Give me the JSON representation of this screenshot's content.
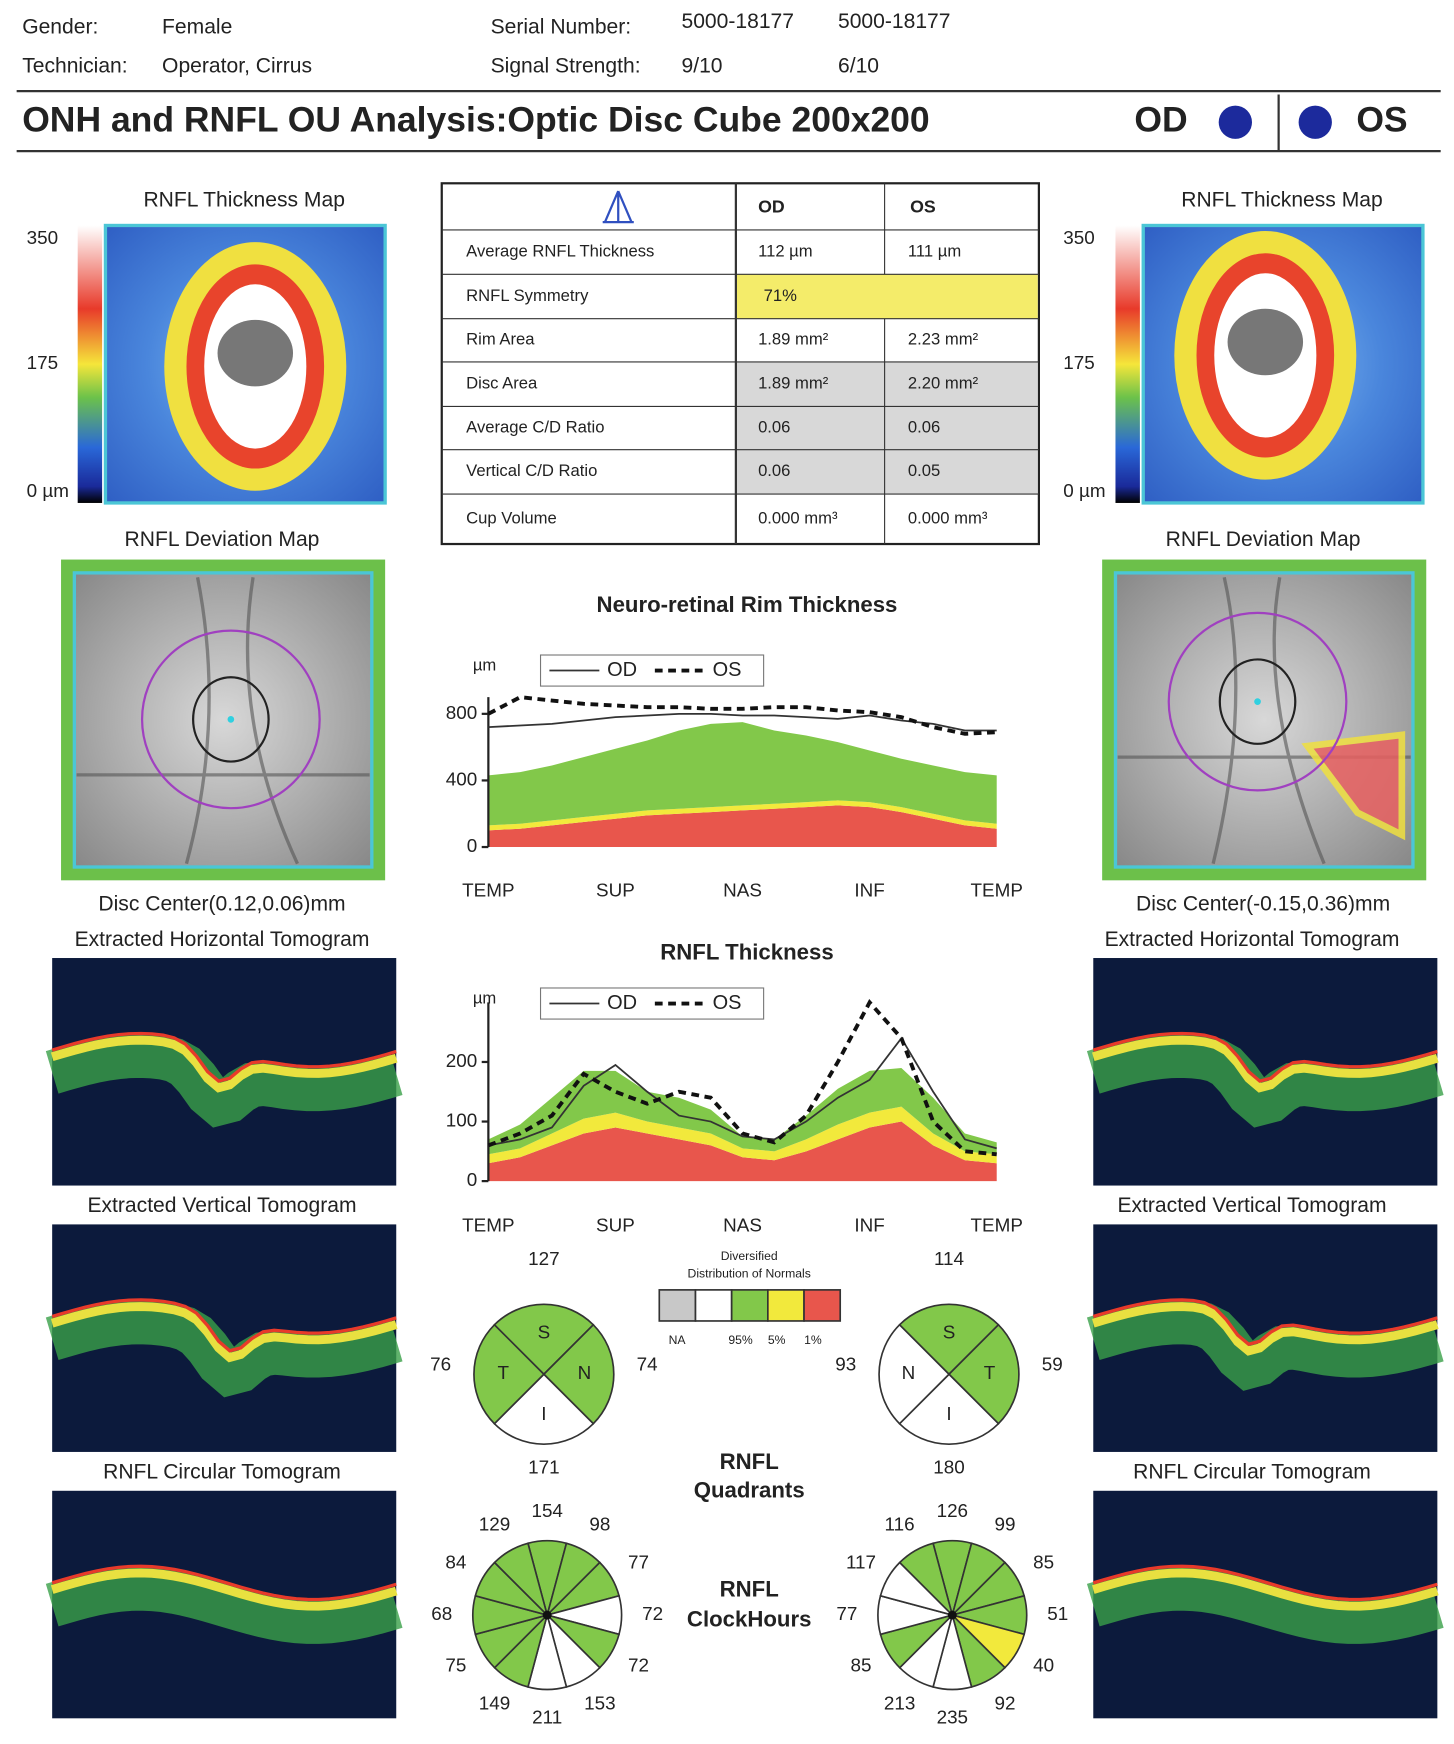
{
  "header": {
    "gender_label": "Gender:",
    "gender": "Female",
    "technician_label": "Technician:",
    "technician": "Operator, Cirrus",
    "serial_label": "Serial Number:",
    "serial": [
      "5000-18177",
      "5000-18177"
    ],
    "signal_label": "Signal Strength:",
    "signal": [
      "9/10",
      "6/10"
    ],
    "title": "ONH and RNFL OU Analysis:Optic Disc Cube 200x200",
    "od": "OD",
    "os": "OS"
  },
  "maps": {
    "thickness_title": [
      "RNFL Thickness Map",
      "RNFL Thickness Map"
    ],
    "scale": [
      350,
      175,
      "0 µm"
    ],
    "deviation_title": [
      "RNFL Deviation Map",
      "RNFL Deviation Map"
    ],
    "disc_center": [
      "Disc Center(0.12,0.06)mm",
      "Disc Center(-0.15,0.36)mm"
    ],
    "horizontal": [
      "Extracted Horizontal Tomogram",
      "Extracted Horizontal Tomogram"
    ],
    "vertical": [
      "Extracted Vertical Tomogram",
      "Extracted Vertical Tomogram"
    ],
    "circular": [
      "RNFL Circular Tomogram",
      "RNFL Circular Tomogram"
    ]
  },
  "table": {
    "header": [
      "OD",
      "OS"
    ],
    "rows": [
      [
        "Average RNFL Thickness",
        "112 µm",
        "111 µm"
      ],
      [
        "RNFL Symmetry",
        "71%"
      ],
      [
        "Rim Area",
        "1.89 mm²",
        "2.23 mm²"
      ],
      [
        "Disc Area",
        "1.89 mm²",
        "2.20 mm²"
      ],
      [
        "Average C/D Ratio",
        "0.06",
        "0.06"
      ],
      [
        "Vertical C/D Ratio",
        "0.06",
        "0.05"
      ],
      [
        "Cup Volume",
        "0.000 mm³",
        "0.000 mm³"
      ]
    ]
  },
  "charts": [
    {
      "type": "line",
      "title": "Neuro-retinal Rim Thickness",
      "unit": "µm",
      "categories": [
        "TEMP",
        null,
        null,
        null,
        "SUP",
        null,
        null,
        null,
        "NAS",
        null,
        null,
        null,
        "INF",
        null,
        null,
        null,
        "TEMP"
      ],
      "ylim": [
        0,
        900
      ],
      "yticks": [
        0,
        400,
        800
      ],
      "bands": [
        {
          "color": "#e8564c",
          "values": [
            100,
            110,
            130,
            150,
            170,
            190,
            200,
            210,
            220,
            230,
            240,
            250,
            240,
            210,
            170,
            130,
            110
          ]
        },
        {
          "color": "#f2e93c",
          "values": [
            30,
            30,
            30,
            30,
            30,
            30,
            30,
            30,
            30,
            30,
            30,
            30,
            30,
            30,
            30,
            30,
            30
          ]
        },
        {
          "color": "#82c84a",
          "values": [
            300,
            310,
            330,
            360,
            390,
            420,
            470,
            500,
            500,
            440,
            400,
            350,
            310,
            290,
            290,
            290,
            290
          ]
        }
      ],
      "series": [
        {
          "name": "OD",
          "color": "#333333",
          "dashed": false,
          "values": [
            720,
            730,
            740,
            760,
            780,
            790,
            800,
            800,
            790,
            790,
            780,
            770,
            790,
            760,
            740,
            700,
            700
          ]
        },
        {
          "name": "OS",
          "color": "#111111",
          "dashed": true,
          "values": [
            800,
            900,
            880,
            860,
            850,
            840,
            840,
            830,
            830,
            840,
            840,
            820,
            810,
            780,
            720,
            680,
            690
          ]
        }
      ]
    },
    {
      "type": "line",
      "title": "RNFL Thickness",
      "unit": "µm",
      "categories": [
        "TEMP",
        null,
        null,
        null,
        "SUP",
        null,
        null,
        null,
        "NAS",
        null,
        null,
        null,
        "INF",
        null,
        null,
        null,
        "TEMP"
      ],
      "ylim": [
        0,
        300
      ],
      "yticks": [
        0,
        100,
        200
      ],
      "bands": [
        {
          "color": "#e8564c",
          "values": [
            30,
            40,
            60,
            80,
            90,
            80,
            70,
            60,
            40,
            35,
            50,
            70,
            90,
            100,
            60,
            35,
            30
          ]
        },
        {
          "color": "#f2e93c",
          "values": [
            15,
            15,
            20,
            25,
            25,
            20,
            20,
            20,
            15,
            15,
            20,
            25,
            25,
            25,
            20,
            15,
            15
          ]
        },
        {
          "color": "#82c84a",
          "values": [
            25,
            40,
            60,
            80,
            70,
            50,
            50,
            40,
            20,
            20,
            40,
            60,
            70,
            65,
            60,
            30,
            20
          ]
        }
      ],
      "series": [
        {
          "name": "OD",
          "color": "#333333",
          "dashed": false,
          "values": [
            60,
            70,
            90,
            160,
            195,
            150,
            110,
            100,
            75,
            70,
            100,
            140,
            170,
            240,
            150,
            70,
            55
          ]
        },
        {
          "name": "OS",
          "color": "#111111",
          "dashed": true,
          "values": [
            60,
            80,
            110,
            180,
            150,
            130,
            150,
            140,
            80,
            65,
            110,
            200,
            300,
            240,
            100,
            50,
            45
          ]
        }
      ]
    }
  ],
  "normals": {
    "title": [
      "Diversified",
      "Distribution of Normals"
    ],
    "items": [
      {
        "label": "NA",
        "color": "#c8c8c8"
      },
      {
        "color": "#ffffff"
      },
      {
        "label": "95%",
        "color": "#82c84a"
      },
      {
        "label": "5%",
        "color": "#f2e93c"
      },
      {
        "label": "1%",
        "color": "#e8564c"
      }
    ]
  },
  "quadrants": {
    "title": [
      "RNFL",
      "Quadrants"
    ],
    "od": [
      {
        "letter": "S",
        "value": 127,
        "color": "#82c84a"
      },
      {
        "letter": "N",
        "value": 74,
        "color": "#82c84a"
      },
      {
        "letter": "I",
        "value": 171,
        "color": "#ffffff"
      },
      {
        "letter": "T",
        "value": 76,
        "color": "#82c84a"
      }
    ],
    "os": [
      {
        "letter": "S",
        "value": 114,
        "color": "#82c84a"
      },
      {
        "letter": "T",
        "value": 59,
        "color": "#82c84a"
      },
      {
        "letter": "I",
        "value": 180,
        "color": "#ffffff"
      },
      {
        "letter": "N",
        "value": 93,
        "color": "#ffffff"
      }
    ]
  },
  "clockhours": {
    "title": [
      "RNFL",
      "ClockHours"
    ],
    "od": [
      {
        "value": 154,
        "color": "#82c84a"
      },
      {
        "value": 98,
        "color": "#82c84a"
      },
      {
        "value": 77,
        "color": "#82c84a"
      },
      {
        "value": 72,
        "color": "#ffffff"
      },
      {
        "value": 72,
        "color": "#82c84a"
      },
      {
        "value": 153,
        "color": "#ffffff"
      },
      {
        "value": 211,
        "color": "#ffffff"
      },
      {
        "value": 149,
        "color": "#82c84a"
      },
      {
        "value": 75,
        "color": "#82c84a"
      },
      {
        "value": 68,
        "color": "#82c84a"
      },
      {
        "value": 84,
        "color": "#82c84a"
      },
      {
        "value": 129,
        "color": "#82c84a"
      }
    ],
    "os": [
      {
        "value": 126,
        "color": "#82c84a"
      },
      {
        "value": 99,
        "color": "#82c84a"
      },
      {
        "value": 85,
        "color": "#82c84a"
      },
      {
        "value": 51,
        "color": "#82c84a"
      },
      {
        "value": 40,
        "color": "#f2e93c"
      },
      {
        "value": 92,
        "color": "#82c84a"
      },
      {
        "value": 235,
        "color": "#ffffff"
      },
      {
        "value": 213,
        "color": "#ffffff"
      },
      {
        "value": 85,
        "color": "#82c84a"
      },
      {
        "value": 77,
        "color": "#ffffff"
      },
      {
        "value": 117,
        "color": "#ffffff"
      },
      {
        "value": 116,
        "color": "#82c84a"
      }
    ]
  }
}
